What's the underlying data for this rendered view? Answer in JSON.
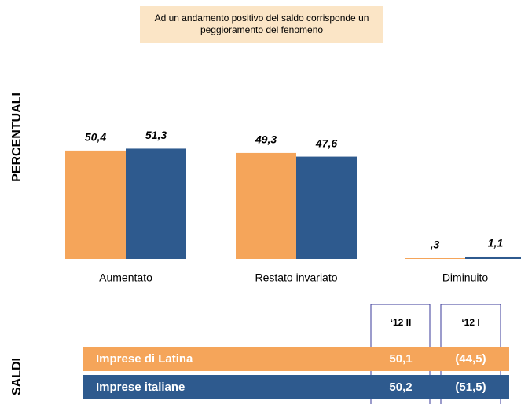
{
  "chart_data": {
    "type": "bar",
    "note": [
      "Ad un andamento positivo del saldo corrisponde un",
      "peggioramento del fenomeno"
    ],
    "section_labels": [
      "PERCENTUALI",
      "SALDI"
    ],
    "categories": [
      "Aumentato",
      "Restato invariato",
      "Diminuito"
    ],
    "series": [
      {
        "name": "Imprese di Latina",
        "color": "#f5a55a",
        "values": [
          50.4,
          49.3,
          0.3
        ],
        "value_labels": [
          "50,4",
          "49,3",
          ",3"
        ]
      },
      {
        "name": "Imprese italiane",
        "color": "#2e5a8e",
        "values": [
          51.3,
          47.6,
          1.1
        ],
        "value_labels": [
          "51,3",
          "47,6",
          "1,1"
        ]
      }
    ],
    "saldi": {
      "columns": [
        "‘12 II",
        "‘12 I"
      ],
      "rows": [
        [
          "50,1",
          "(44,5)"
        ],
        [
          "50,2",
          "(51,5)"
        ]
      ]
    }
  }
}
